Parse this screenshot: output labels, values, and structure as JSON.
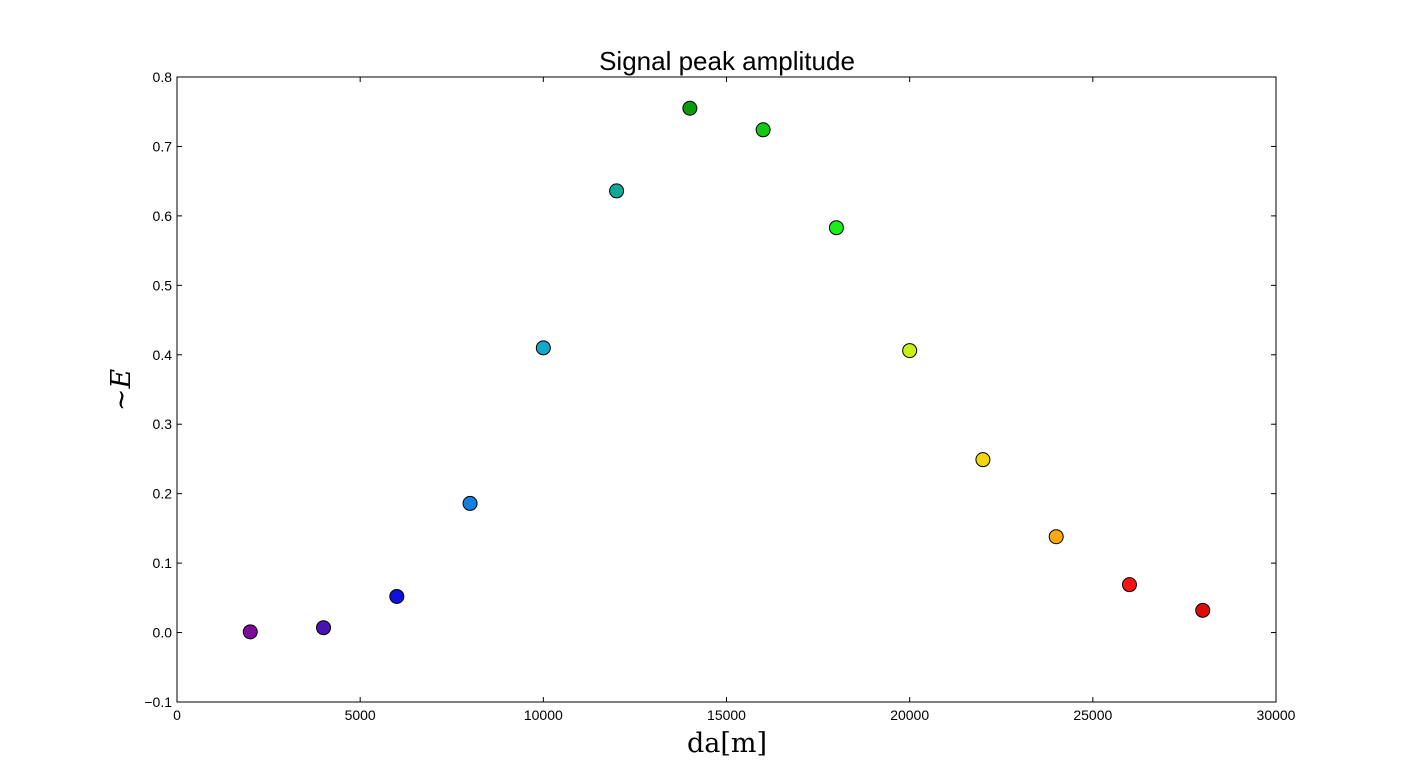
{
  "chart_data": {
    "type": "scatter",
    "title": "Signal peak amplitude",
    "xlabel": "da[m]",
    "ylabel": "~E",
    "xlim": [
      0,
      30000
    ],
    "ylim": [
      -0.1,
      0.8
    ],
    "xticks": [
      0,
      5000,
      10000,
      15000,
      20000,
      25000,
      30000
    ],
    "xtick_labels": [
      "0",
      "5000",
      "10000",
      "15000",
      "20000",
      "25000",
      "30000"
    ],
    "yticks": [
      -0.1,
      0.0,
      0.1,
      0.2,
      0.3,
      0.4,
      0.5,
      0.6,
      0.7,
      0.8
    ],
    "ytick_labels": [
      "−0.1",
      "0.0",
      "0.1",
      "0.2",
      "0.3",
      "0.4",
      "0.5",
      "0.6",
      "0.7",
      "0.8"
    ],
    "grid": false,
    "points": [
      {
        "x": 2000,
        "y": 0.001,
        "color": "#7f0a9a"
      },
      {
        "x": 4000,
        "y": 0.007,
        "color": "#4a12b0"
      },
      {
        "x": 6000,
        "y": 0.052,
        "color": "#1010e0"
      },
      {
        "x": 8000,
        "y": 0.186,
        "color": "#0f7fe0"
      },
      {
        "x": 10000,
        "y": 0.41,
        "color": "#14a7c8"
      },
      {
        "x": 12000,
        "y": 0.636,
        "color": "#12a898"
      },
      {
        "x": 14000,
        "y": 0.755,
        "color": "#0a9a0a"
      },
      {
        "x": 16000,
        "y": 0.724,
        "color": "#12c812"
      },
      {
        "x": 18000,
        "y": 0.583,
        "color": "#1aef1a"
      },
      {
        "x": 20000,
        "y": 0.406,
        "color": "#c8f014"
      },
      {
        "x": 22000,
        "y": 0.249,
        "color": "#f2d80a"
      },
      {
        "x": 24000,
        "y": 0.138,
        "color": "#ffa812"
      },
      {
        "x": 26000,
        "y": 0.069,
        "color": "#ff1010"
      },
      {
        "x": 28000,
        "y": 0.032,
        "color": "#dd0c0c"
      }
    ]
  }
}
